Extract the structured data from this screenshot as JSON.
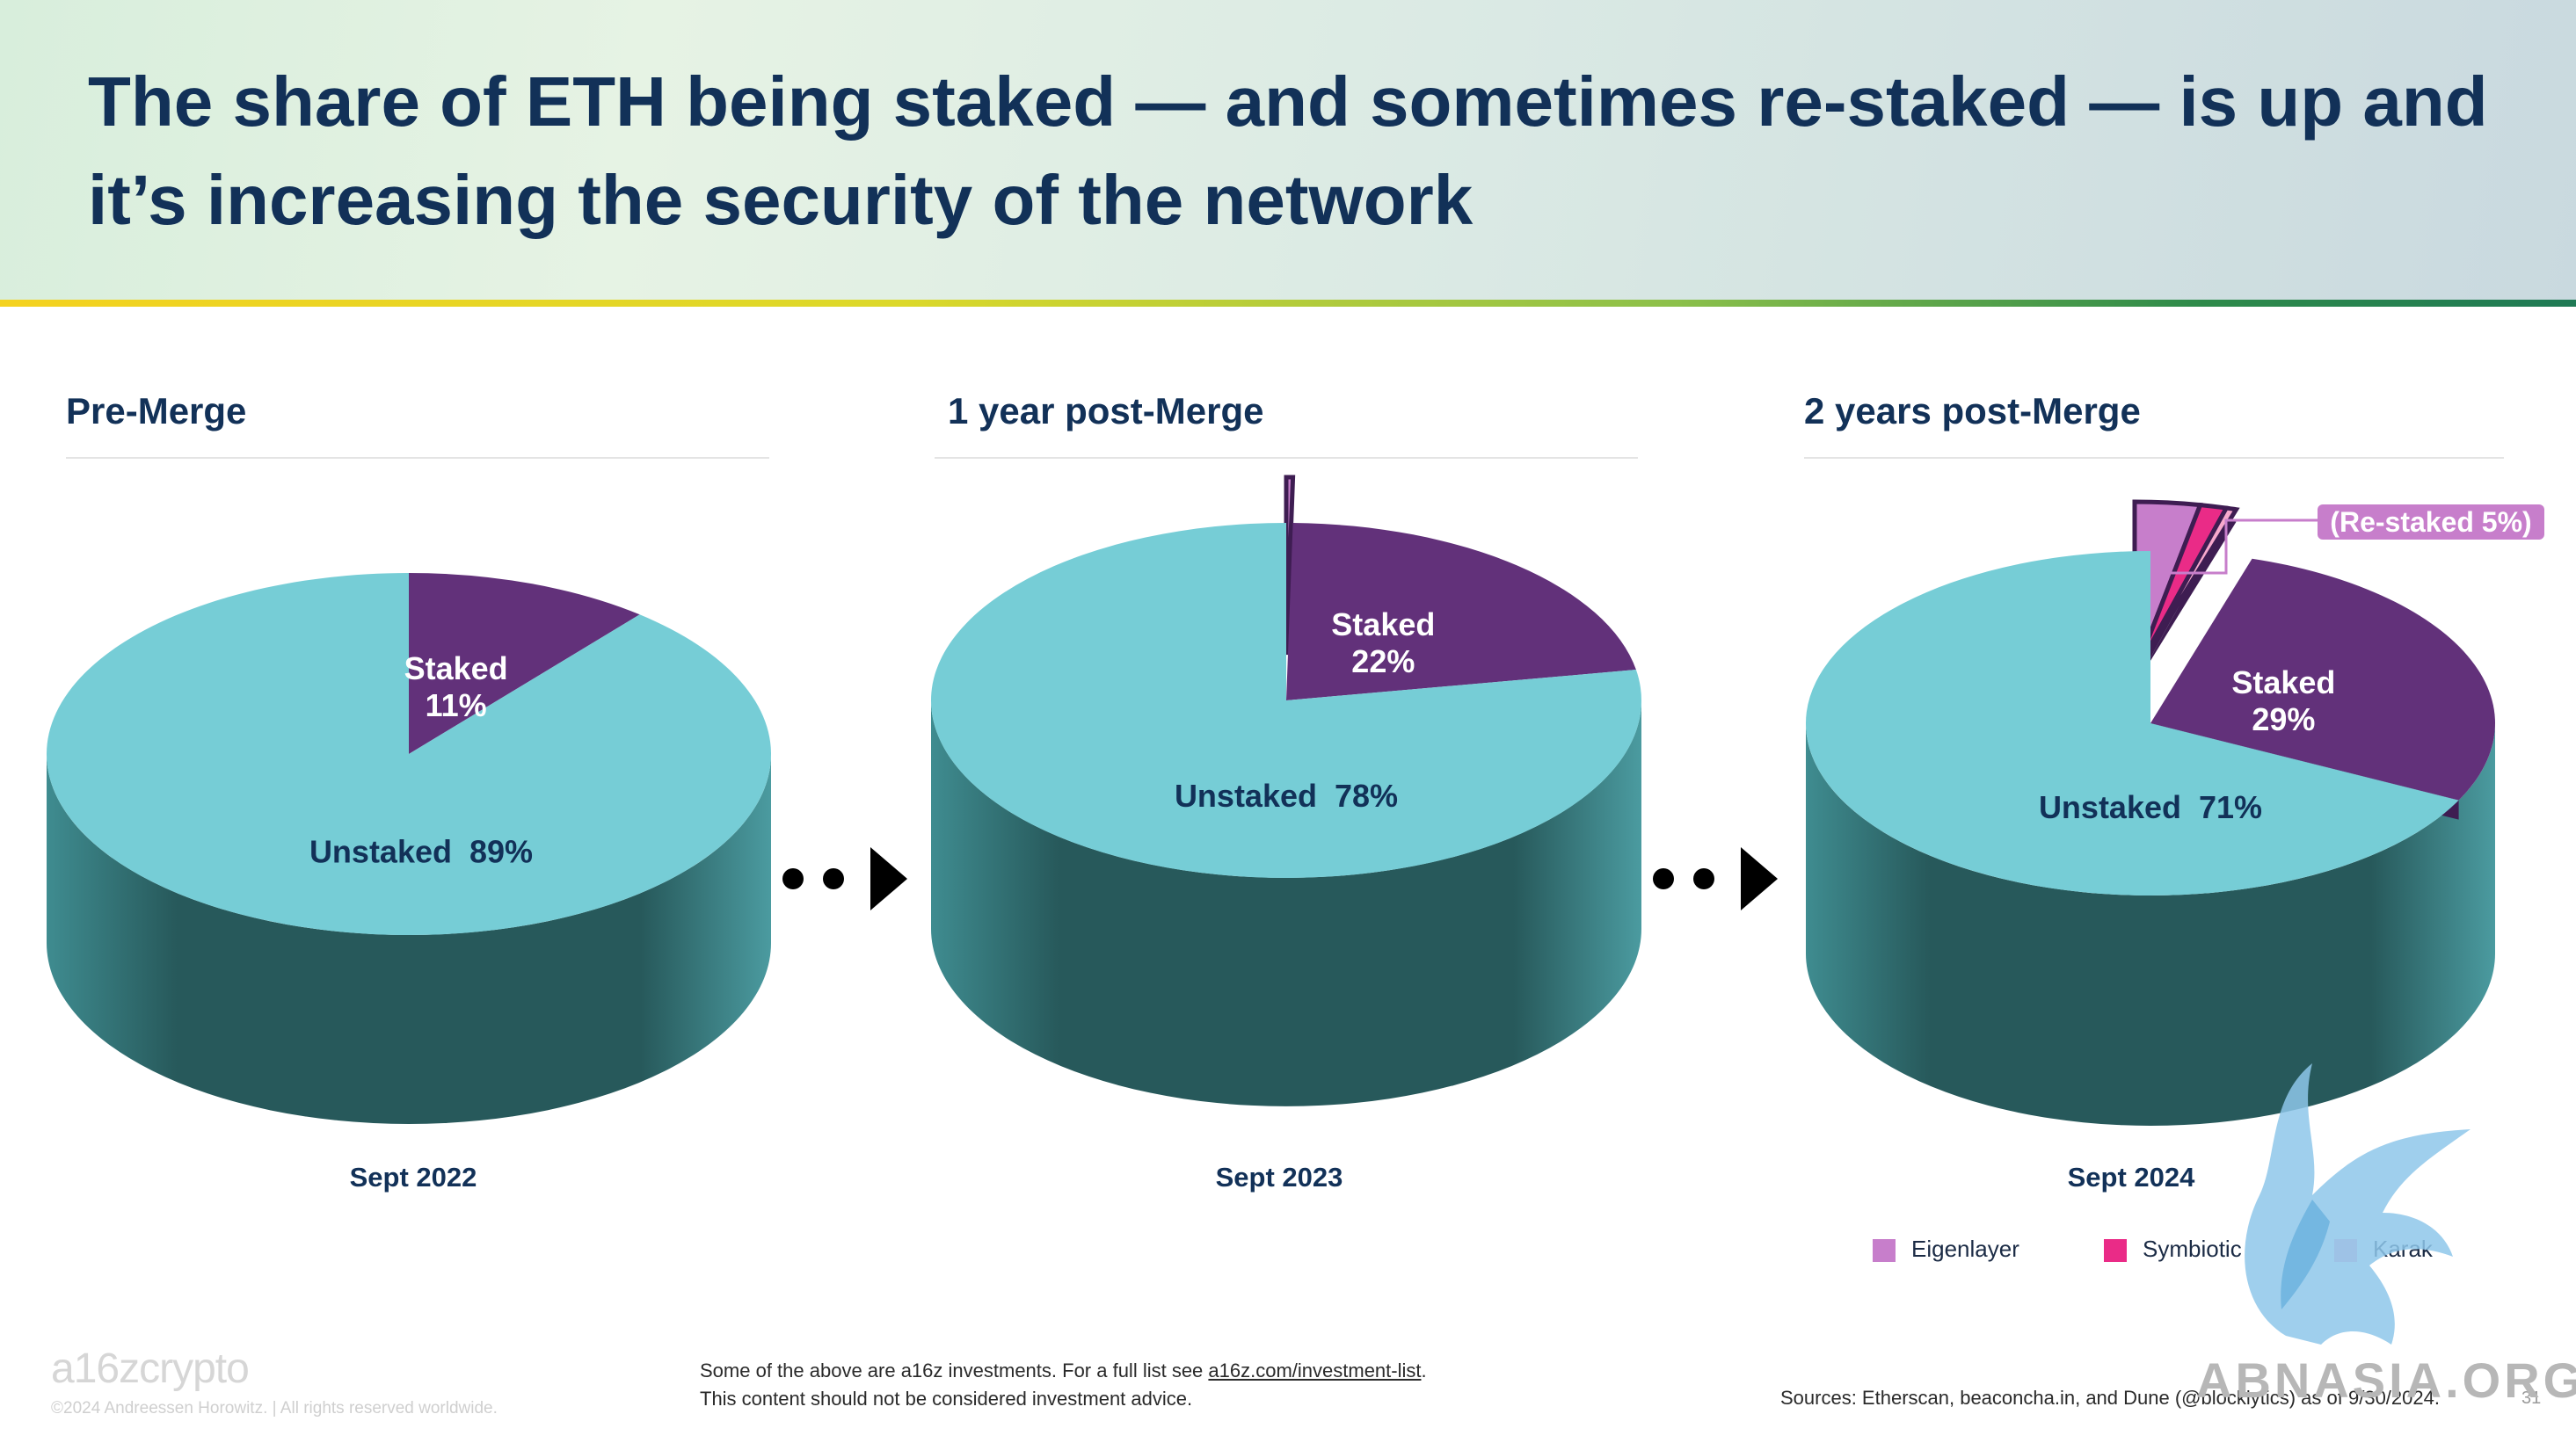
{
  "title": "The share of ETH being staked — and sometimes re-staked — is up and it’s increasing the security of the network",
  "chart_data": [
    {
      "type": "pie",
      "title": "Pre-Merge",
      "caption": "Sept 2022",
      "slices": [
        {
          "name": "Staked",
          "value": 11,
          "label": "Staked",
          "value_label": "11%",
          "color": "#62317a"
        },
        {
          "name": "Unstaked",
          "value": 89,
          "label": "Unstaked  89%",
          "color": "#76cdd6"
        }
      ]
    },
    {
      "type": "pie",
      "title": "1 year post-Merge",
      "caption": "Sept 2023",
      "slices": [
        {
          "name": "Re-staked",
          "value": 0.3,
          "color": "#c77ecb"
        },
        {
          "name": "Staked",
          "value": 22,
          "label": "Staked",
          "value_label": "22%",
          "color": "#62317a"
        },
        {
          "name": "Unstaked",
          "value": 78,
          "label": "Unstaked  78%",
          "color": "#76cdd6"
        }
      ]
    },
    {
      "type": "pie",
      "title": "2 years post-Merge",
      "caption": "Sept 2024",
      "annotation": "(Re-staked 5%)",
      "slices": [
        {
          "name": "Eigenlayer",
          "value": 3.2,
          "color": "#c77ecb"
        },
        {
          "name": "Symbiotic",
          "value": 1.3,
          "color": "#ea2b87"
        },
        {
          "name": "Karak",
          "value": 0.5,
          "color": "#f7a9cd"
        },
        {
          "name": "Staked",
          "value": 29,
          "label": "Staked",
          "value_label": "29%",
          "color": "#62317a"
        },
        {
          "name": "Unstaked",
          "value": 71,
          "label": "Unstaked  71%",
          "color": "#76cdd6"
        }
      ]
    }
  ],
  "legend": [
    {
      "label": "Eigenlayer",
      "color": "#c77ecb"
    },
    {
      "label": "Symbiotic",
      "color": "#ea2b87"
    },
    {
      "label": "Karak",
      "color": "#f7a9cd"
    }
  ],
  "footer": {
    "logo": "a16zcrypto",
    "copyright": "©2024 Andreessen Horowitz.  |  All rights reserved worldwide.",
    "disclaimer_line1_prefix": "Some of the above are a16z investments. For a full list see ",
    "disclaimer_link": "a16z.com/investment-list",
    "disclaimer_line1_suffix": ".",
    "disclaimer_line2": "This content should not be considered investment advice.",
    "sources": "Sources: Etherscan, beaconcha.in, and Dune (@blocklytics) as of 9/30/2024.",
    "page_number": "31"
  },
  "watermark": "ABNASIA.ORG",
  "colors": {
    "title": "#123158",
    "unstaked_top": "#76cdd6",
    "unstaked_side": "#27595b",
    "staked": "#62317a",
    "staked_side": "#3e1d52"
  }
}
